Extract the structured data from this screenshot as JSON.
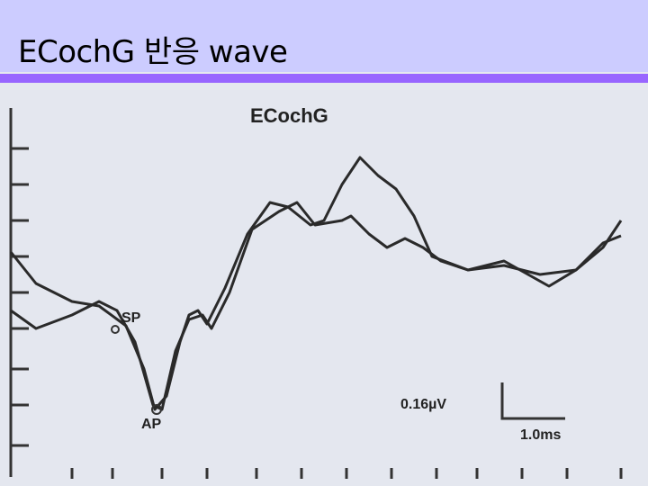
{
  "header": {
    "title": "ECochG 반응 wave"
  },
  "figure": {
    "title": "ECochG",
    "labels": {
      "sp": "SP",
      "ap": "AP",
      "amplitude_scale": "0.16µV",
      "time_scale": "1.0ms"
    }
  }
}
